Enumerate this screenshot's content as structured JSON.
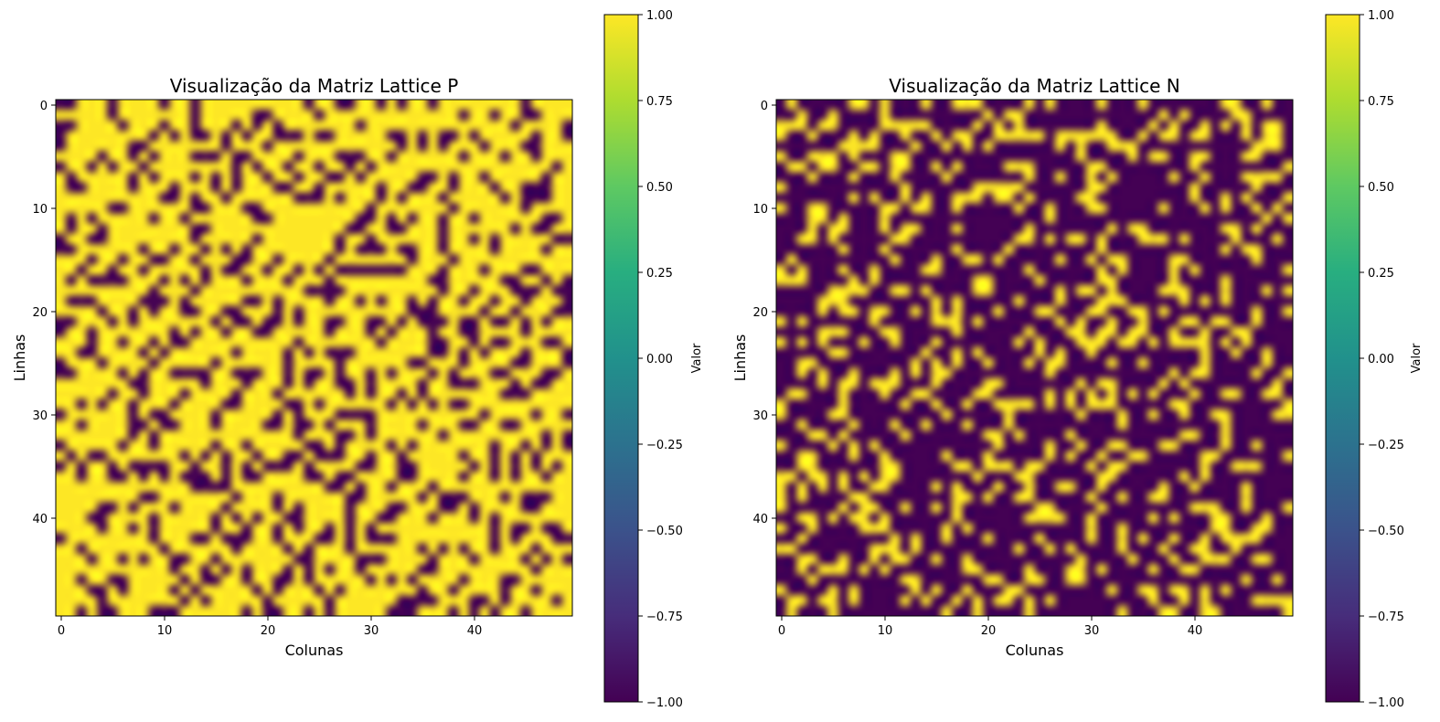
{
  "chart_data": [
    {
      "type": "heatmap",
      "title": "Visualização da Matriz Lattice P",
      "xlabel": "Colunas",
      "ylabel": "Linhas",
      "rows": 50,
      "cols": 50,
      "x_ticks": [
        "0",
        "10",
        "20",
        "30",
        "40"
      ],
      "y_ticks": [
        "0",
        "10",
        "20",
        "30",
        "40"
      ],
      "colormap": "viridis",
      "interpolation": "smooth",
      "value_set": [
        -1,
        1
      ],
      "dominant_value": 1,
      "minority_value": -1,
      "approx_fraction_minority": 0.3,
      "colorbar": {
        "label": "Valor",
        "range": [
          -1.0,
          1.0
        ],
        "ticks": [
          "−1.00",
          "−0.75",
          "−0.50",
          "−0.25",
          "0.00",
          "0.25",
          "0.50",
          "0.75",
          "1.00"
        ]
      }
    },
    {
      "type": "heatmap",
      "title": "Visualização da Matriz Lattice N",
      "xlabel": "Colunas",
      "ylabel": "Linhas",
      "rows": 50,
      "cols": 50,
      "x_ticks": [
        "0",
        "10",
        "20",
        "30",
        "40"
      ],
      "y_ticks": [
        "0",
        "10",
        "20",
        "30",
        "40"
      ],
      "colormap": "viridis",
      "interpolation": "smooth",
      "value_set": [
        -1,
        1
      ],
      "dominant_value": -1,
      "minority_value": 1,
      "approx_fraction_minority": 0.3,
      "colorbar": {
        "label": "Valor",
        "range": [
          -1.0,
          1.0
        ],
        "ticks": [
          "−1.00",
          "−0.75",
          "−0.50",
          "−0.25",
          "0.00",
          "0.25",
          "0.50",
          "0.75",
          "1.00"
        ]
      }
    }
  ],
  "colors": {
    "viridis_low": "#440154",
    "viridis_mid": "#21918c",
    "viridis_high": "#fde725"
  }
}
